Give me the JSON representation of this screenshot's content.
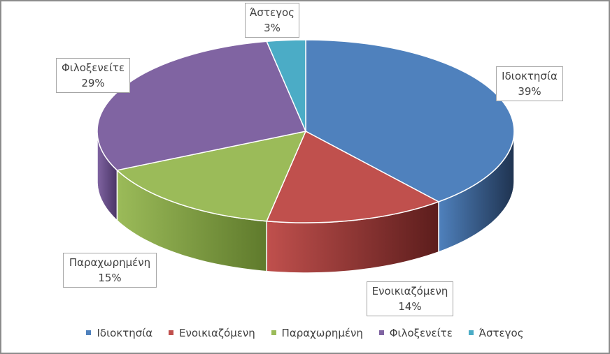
{
  "chart_data": {
    "type": "pie",
    "style": "3d",
    "title": "",
    "slices": [
      {
        "label": "Ιδιοκτησία",
        "value": 39,
        "value_label": "39%",
        "color": "#4f81bd",
        "side_color": "#1f3350"
      },
      {
        "label": "Ενοικιαζόμενη",
        "value": 14,
        "value_label": "14%",
        "color": "#c0504d",
        "side_color": "#5c1d1c"
      },
      {
        "label": "Παραχωρημένη",
        "value": 15,
        "value_label": "15%",
        "color": "#9bbb59",
        "side_color": "#5f7a2c"
      },
      {
        "label": "Φιλοξενείτε",
        "value": 29,
        "value_label": "29%",
        "color": "#8064a2",
        "side_color": "#4a3566"
      },
      {
        "label": "Άστεγος",
        "value": 3,
        "value_label": "3%",
        "color": "#4bacc6",
        "side_color": "#23697c"
      }
    ],
    "legend": {
      "position": "bottom"
    }
  }
}
